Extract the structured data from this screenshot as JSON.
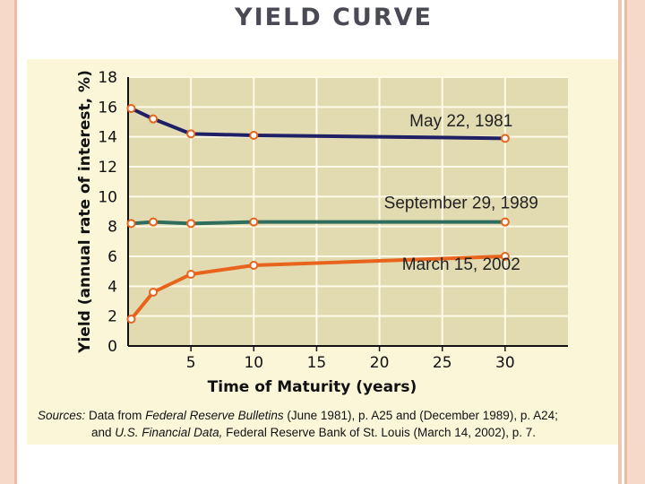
{
  "slide": {
    "title": "YIELD CURVE"
  },
  "chart_data": {
    "type": "line",
    "xlabel": "Time of Maturity (years)",
    "ylabel": "Yield (annual rate of interest, %)",
    "xlim": [
      0,
      35
    ],
    "ylim": [
      0,
      18
    ],
    "x_ticks": [
      "5",
      "10",
      "15",
      "20",
      "25",
      "30"
    ],
    "y_ticks": [
      "0",
      "2",
      "4",
      "6",
      "8",
      "10",
      "12",
      "14",
      "16",
      "18"
    ],
    "grid": true,
    "series": [
      {
        "name": "May 22, 1981",
        "color": "#1f1f66",
        "x": [
          0.25,
          2,
          5,
          10,
          30
        ],
        "y": [
          15.9,
          15.2,
          14.2,
          14.1,
          13.9
        ]
      },
      {
        "name": "September 29, 1989",
        "color": "#2f6e5e",
        "x": [
          0.25,
          2,
          5,
          10,
          30
        ],
        "y": [
          8.2,
          8.3,
          8.2,
          8.3,
          8.3
        ]
      },
      {
        "name": "March 15, 2002",
        "color": "#e8641c",
        "x": [
          0.25,
          2,
          5,
          10,
          30
        ],
        "y": [
          1.8,
          3.6,
          4.8,
          5.4,
          6.0
        ]
      }
    ]
  },
  "sources": {
    "label": "Sources:",
    "text1": "Data from ",
    "pub1": "Federal Reserve Bulletins",
    "text2": " (June 1981), p. A25 and (December 1989), p. A24;",
    "text3": "and ",
    "pub2": "U.S. Financial Data,",
    "text4": " Federal Reserve Bank of St. Louis (March 14, 2002), p. 7."
  }
}
